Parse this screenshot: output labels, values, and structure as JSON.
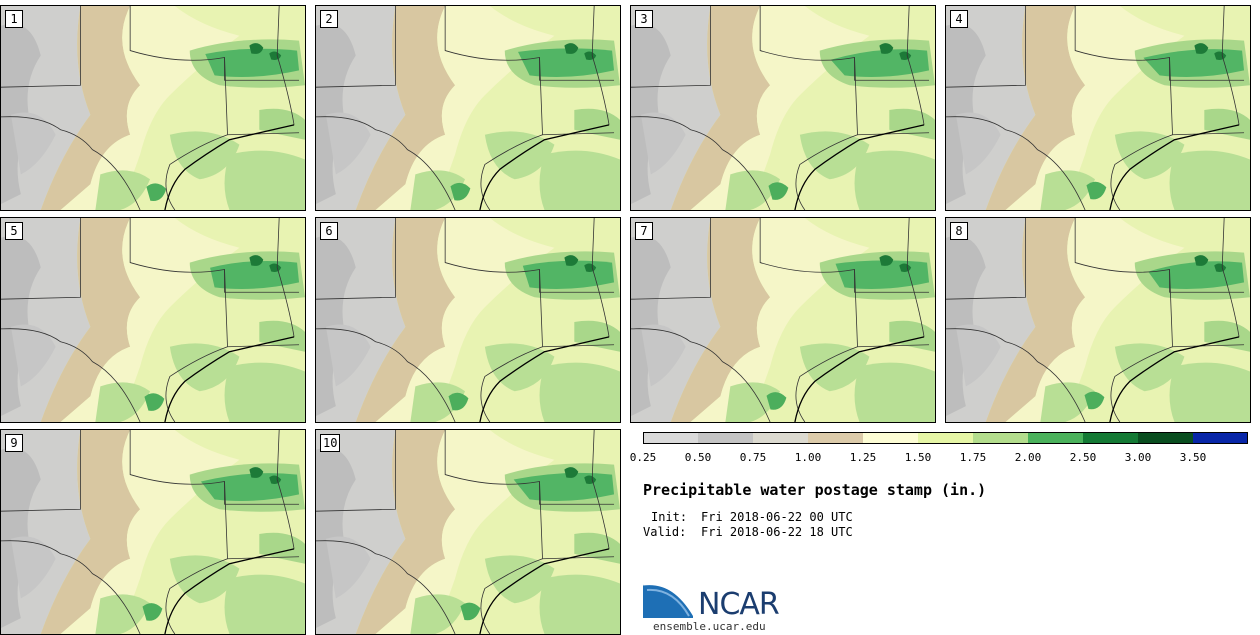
{
  "title": "Precipitable water postage stamp (in.)",
  "init_label": "Init:",
  "init_value": "Fri 2018-06-22 00 UTC",
  "valid_label": "Valid:",
  "valid_value": "Fri 2018-06-22 18 UTC",
  "members": [
    "1",
    "2",
    "3",
    "4",
    "5",
    "6",
    "7",
    "8",
    "9",
    "10"
  ],
  "colorbar": {
    "tick_labels": [
      "0.25",
      "0.50",
      "0.75",
      "1.00",
      "1.25",
      "1.50",
      "1.75",
      "2.00",
      "2.50",
      "3.00",
      "3.50"
    ],
    "colors": [
      "#dadada",
      "#c4c4c4",
      "#dcdad0",
      "#dccbaa",
      "#fdfdd5",
      "#e6f6a6",
      "#b3dd8d",
      "#4bb25c",
      "#147a35",
      "#0a4e20",
      "#0826a8"
    ]
  },
  "logo": {
    "text": "NCAR",
    "url": "ensemble.ucar.edu"
  }
}
